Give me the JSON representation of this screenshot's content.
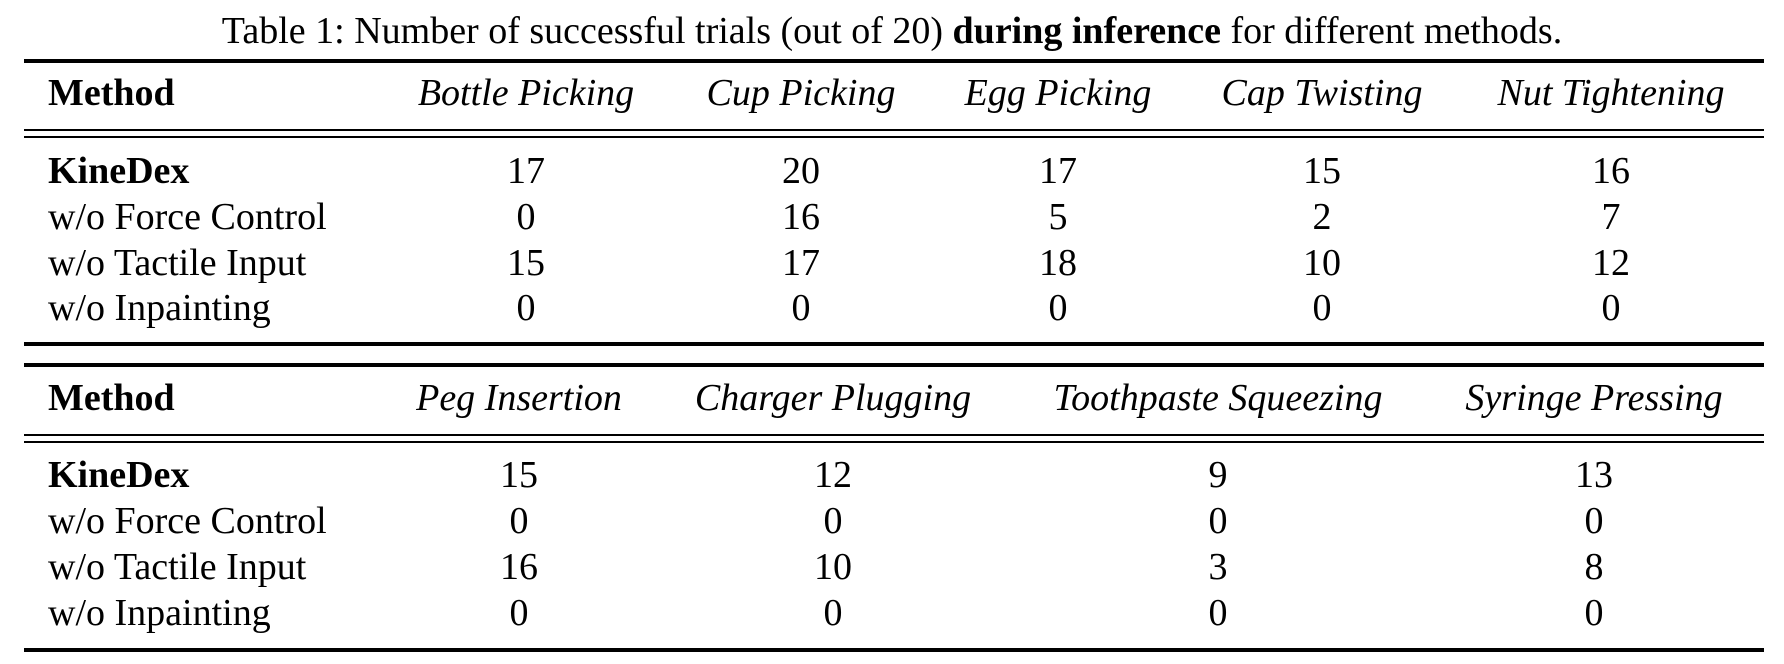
{
  "caption": {
    "prefix": "Table 1: Number of successful trials (out of 20) ",
    "bold": "during inference",
    "suffix": " for different methods."
  },
  "table1": {
    "method_header": "Method",
    "columns": [
      "Bottle Picking",
      "Cup Picking",
      "Egg Picking",
      "Cap Twisting",
      "Nut Tightening"
    ],
    "rows": [
      {
        "method": "KineDex",
        "values": [
          "17",
          "20",
          "17",
          "15",
          "16"
        ]
      },
      {
        "method": "w/o Force Control",
        "values": [
          "0",
          "16",
          "5",
          "2",
          "7"
        ]
      },
      {
        "method": "w/o Tactile Input",
        "values": [
          "15",
          "17",
          "18",
          "10",
          "12"
        ]
      },
      {
        "method": "w/o Inpainting",
        "values": [
          "0",
          "0",
          "0",
          "0",
          "0"
        ]
      }
    ]
  },
  "table2": {
    "method_header": "Method",
    "columns": [
      "Peg Insertion",
      "Charger Plugging",
      "Toothpaste Squeezing",
      "Syringe Pressing"
    ],
    "rows": [
      {
        "method": "KineDex",
        "values": [
          "15",
          "12",
          "9",
          "13"
        ]
      },
      {
        "method": "w/o Force Control",
        "values": [
          "0",
          "0",
          "0",
          "0"
        ]
      },
      {
        "method": "w/o Tactile Input",
        "values": [
          "16",
          "10",
          "3",
          "8"
        ]
      },
      {
        "method": "w/o Inpainting",
        "values": [
          "0",
          "0",
          "0",
          "0"
        ]
      }
    ]
  }
}
